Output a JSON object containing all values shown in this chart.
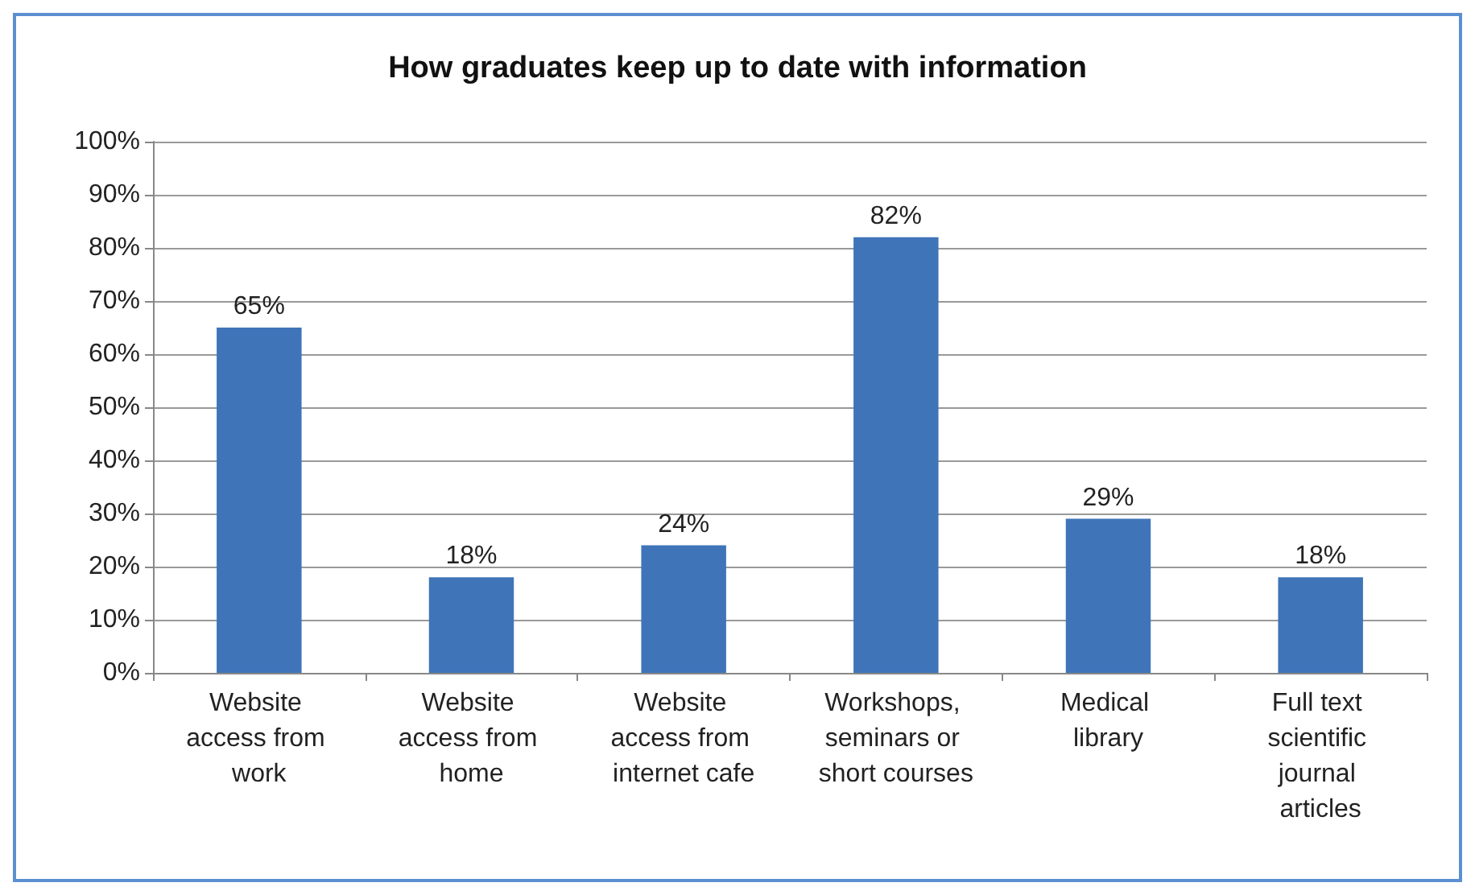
{
  "chart_data": {
    "type": "bar",
    "title": "How graduates keep up to date with information",
    "categories": [
      "Website access from work",
      "Website access from home",
      "Website access from internet cafe",
      "Workshops, seminars or short courses",
      "Medical library",
      "Full text scientific journal articles"
    ],
    "values": [
      65,
      18,
      24,
      82,
      29,
      18
    ],
    "color": "#3f74b8",
    "value_labels": [
      "65%",
      "18%",
      "24%",
      "82%",
      "29%",
      "18%"
    ],
    "ylim": [
      0,
      100
    ],
    "yticks": [
      {
        "value": 0,
        "label": "0%"
      },
      {
        "value": 10,
        "label": "10%"
      },
      {
        "value": 20,
        "label": "20%"
      },
      {
        "value": 30,
        "label": "30%"
      },
      {
        "value": 40,
        "label": "40%"
      },
      {
        "value": 50,
        "label": "50%"
      },
      {
        "value": 60,
        "label": "60%"
      },
      {
        "value": 70,
        "label": "70%"
      },
      {
        "value": 80,
        "label": "80%"
      },
      {
        "value": 90,
        "label": "90%"
      },
      {
        "value": 100,
        "label": "100%"
      }
    ],
    "grid": "y"
  }
}
